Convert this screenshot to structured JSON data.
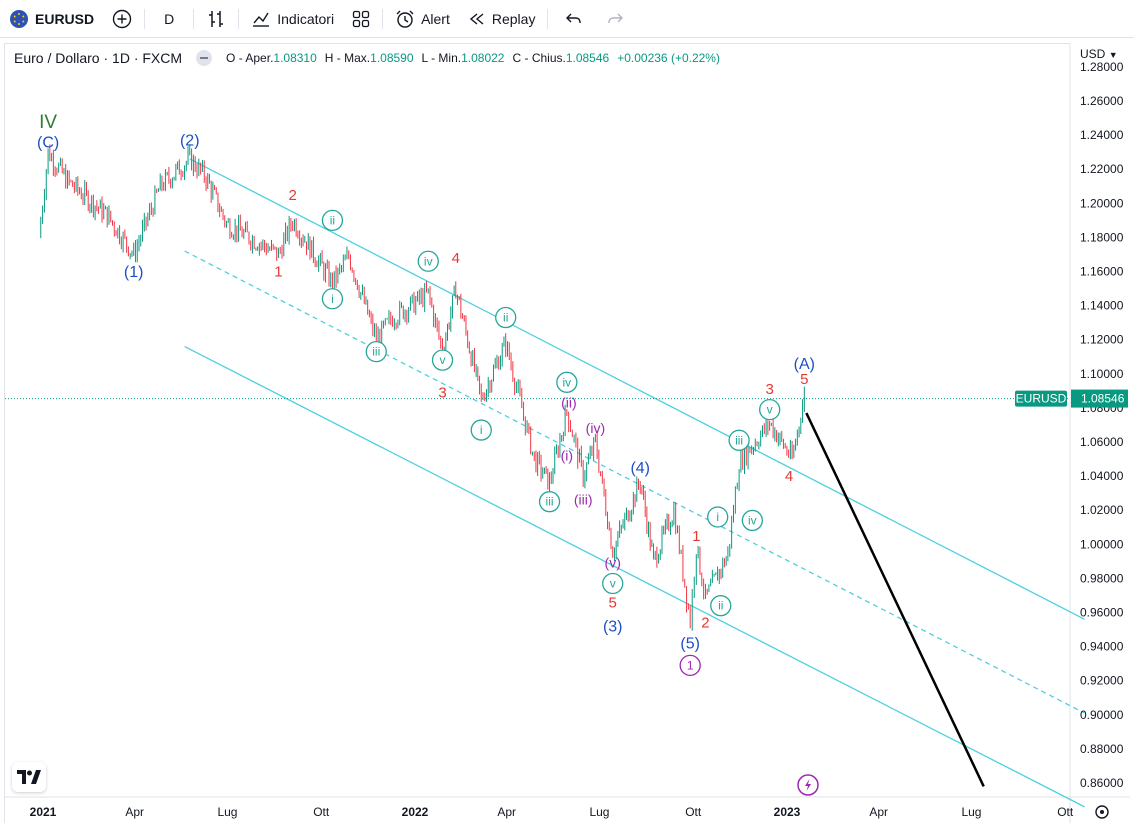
{
  "toolbar": {
    "symbol": "EURUSD",
    "interval": "D",
    "indicators_label": "Indicatori",
    "alert_label": "Alert",
    "replay_label": "Replay"
  },
  "legend": {
    "title": "Euro / Dollaro · 1D · FXCM",
    "open_label": "O - Aper.",
    "open_value": "1.08310",
    "high_label": "H - Max.",
    "high_value": "1.08590",
    "low_label": "L - Min.",
    "low_value": "1.08022",
    "close_label": "C - Chius.",
    "close_value": "1.08546",
    "change_value": "+0.00236 (+0.22%)"
  },
  "price_scale": {
    "currency": "USD"
  },
  "colors": {
    "up": "#089981",
    "down": "#f23645",
    "channel": "#4dd0e1",
    "wave_blue": "#1e4fc4",
    "wave_red": "#e53935",
    "wave_green": "#26a69a",
    "wave_purple": "#9c27b0",
    "wave_darkgreen": "#2e7d32",
    "projection": "#000000"
  },
  "chart_data": {
    "type": "candlestick",
    "symbol": "EURUSD",
    "title": "Euro / Dollaro · 1D · FXCM",
    "ylim": [
      0.85,
      1.28
    ],
    "y_ticks": [
      "0.86000",
      "0.88000",
      "0.90000",
      "0.92000",
      "0.94000",
      "0.96000",
      "0.98000",
      "1.00000",
      "1.02000",
      "1.04000",
      "1.06000",
      "1.08000",
      "1.10000",
      "1.12000",
      "1.14000",
      "1.16000",
      "1.18000",
      "1.20000",
      "1.22000",
      "1.24000",
      "1.26000",
      "1.28000"
    ],
    "x_ticks": [
      "2021",
      "Apr",
      "Lug",
      "Ott",
      "2022",
      "Apr",
      "Lug",
      "Ott",
      "2023",
      "Apr",
      "Lug",
      "Ott"
    ],
    "last_price": {
      "label": "EURUSD",
      "value": "1.08546"
    },
    "price_path": [
      {
        "date": "2020-12-28",
        "close": 1.18
      },
      {
        "date": "2021-01-06",
        "close": 1.23
      },
      {
        "date": "2021-01-25",
        "close": 1.213
      },
      {
        "date": "2021-03-05",
        "close": 1.193
      },
      {
        "date": "2021-03-31",
        "close": 1.17
      },
      {
        "date": "2021-04-26",
        "close": 1.21
      },
      {
        "date": "2021-05-25",
        "close": 1.226
      },
      {
        "date": "2021-06-10",
        "close": 1.215
      },
      {
        "date": "2021-06-30",
        "close": 1.188
      },
      {
        "date": "2021-08-20",
        "close": 1.17
      },
      {
        "date": "2021-09-03",
        "close": 1.19
      },
      {
        "date": "2021-10-12",
        "close": 1.153
      },
      {
        "date": "2021-10-28",
        "close": 1.169
      },
      {
        "date": "2021-11-24",
        "close": 1.12
      },
      {
        "date": "2021-12-10",
        "close": 1.133
      },
      {
        "date": "2022-01-14",
        "close": 1.147
      },
      {
        "date": "2022-01-28",
        "close": 1.113
      },
      {
        "date": "2022-02-10",
        "close": 1.15
      },
      {
        "date": "2022-03-07",
        "close": 1.085
      },
      {
        "date": "2022-03-31",
        "close": 1.118
      },
      {
        "date": "2022-04-28",
        "close": 1.05
      },
      {
        "date": "2022-05-13",
        "close": 1.036
      },
      {
        "date": "2022-05-30",
        "close": 1.078
      },
      {
        "date": "2022-06-15",
        "close": 1.04
      },
      {
        "date": "2022-06-27",
        "close": 1.06
      },
      {
        "date": "2022-07-14",
        "close": 0.996
      },
      {
        "date": "2022-08-10",
        "close": 1.037
      },
      {
        "date": "2022-08-23",
        "close": 0.99
      },
      {
        "date": "2022-09-12",
        "close": 1.02
      },
      {
        "date": "2022-09-28",
        "close": 0.955
      },
      {
        "date": "2022-10-04",
        "close": 0.999
      },
      {
        "date": "2022-10-13",
        "close": 0.968
      },
      {
        "date": "2022-11-04",
        "close": 0.994
      },
      {
        "date": "2022-11-15",
        "close": 1.048
      },
      {
        "date": "2022-12-15",
        "close": 1.071
      },
      {
        "date": "2023-01-06",
        "close": 1.05
      },
      {
        "date": "2023-01-18",
        "close": 1.087
      }
    ],
    "annotations": [
      {
        "text": "IV",
        "color": "darkgreen",
        "date": "2021-01-06",
        "price": 1.248
      },
      {
        "text": "(C)",
        "color": "blue",
        "date": "2021-01-06",
        "price": 1.236
      },
      {
        "text": "(1)",
        "color": "blue",
        "date": "2021-03-31",
        "price": 1.16
      },
      {
        "text": "(2)",
        "color": "blue",
        "date": "2021-05-25",
        "price": 1.237
      },
      {
        "text": "2",
        "color": "red",
        "date": "2021-09-03",
        "price": 1.205
      },
      {
        "text": "1",
        "color": "red",
        "date": "2021-08-20",
        "price": 1.16
      },
      {
        "text": "ii",
        "color": "green",
        "circled": true,
        "date": "2021-10-12",
        "price": 1.19
      },
      {
        "text": "i",
        "color": "green",
        "circled": true,
        "date": "2021-10-12",
        "price": 1.144
      },
      {
        "text": "iii",
        "color": "green",
        "circled": true,
        "date": "2021-11-24",
        "price": 1.113
      },
      {
        "text": "iv",
        "color": "green",
        "circled": true,
        "date": "2022-01-14",
        "price": 1.166
      },
      {
        "text": "4",
        "color": "red",
        "date": "2022-02-10",
        "price": 1.168
      },
      {
        "text": "v",
        "color": "green",
        "circled": true,
        "date": "2022-01-28",
        "price": 1.108
      },
      {
        "text": "ii",
        "color": "green",
        "circled": true,
        "date": "2022-03-31",
        "price": 1.133
      },
      {
        "text": "3",
        "color": "red",
        "date": "2022-01-28",
        "price": 1.089
      },
      {
        "text": "i",
        "color": "green",
        "circled": true,
        "date": "2022-03-07",
        "price": 1.067
      },
      {
        "text": "iv",
        "color": "green",
        "circled": true,
        "date": "2022-05-30",
        "price": 1.095
      },
      {
        "text": "(ii)",
        "color": "purple",
        "date": "2022-06-01",
        "price": 1.083
      },
      {
        "text": "(iv)",
        "color": "purple",
        "date": "2022-06-27",
        "price": 1.068
      },
      {
        "text": "(i)",
        "color": "purple",
        "date": "2022-05-30",
        "price": 1.052
      },
      {
        "text": "(iii)",
        "color": "purple",
        "date": "2022-06-15",
        "price": 1.026
      },
      {
        "text": "iii",
        "color": "green",
        "circled": true,
        "date": "2022-05-13",
        "price": 1.025
      },
      {
        "text": "(4)",
        "color": "blue",
        "date": "2022-08-10",
        "price": 1.045
      },
      {
        "text": "(v)",
        "color": "purple",
        "date": "2022-07-14",
        "price": 0.989
      },
      {
        "text": "v",
        "color": "green",
        "circled": true,
        "date": "2022-07-14",
        "price": 0.977
      },
      {
        "text": "5",
        "color": "red",
        "date": "2022-07-14",
        "price": 0.966
      },
      {
        "text": "(3)",
        "color": "blue",
        "date": "2022-07-14",
        "price": 0.952
      },
      {
        "text": "1",
        "color": "red",
        "date": "2022-10-04",
        "price": 1.005
      },
      {
        "text": "(5)",
        "color": "blue",
        "date": "2022-09-28",
        "price": 0.942
      },
      {
        "text": "1",
        "color": "purple",
        "circled": true,
        "date": "2022-09-28",
        "price": 0.929
      },
      {
        "text": "2",
        "color": "red",
        "date": "2022-10-13",
        "price": 0.954
      },
      {
        "text": "i",
        "color": "green",
        "circled": true,
        "date": "2022-10-25",
        "price": 1.016
      },
      {
        "text": "ii",
        "color": "green",
        "circled": true,
        "date": "2022-10-28",
        "price": 0.964
      },
      {
        "text": "iii",
        "color": "green",
        "circled": true,
        "date": "2022-11-15",
        "price": 1.061
      },
      {
        "text": "iv",
        "color": "green",
        "circled": true,
        "date": "2022-11-28",
        "price": 1.014
      },
      {
        "text": "v",
        "color": "green",
        "circled": true,
        "date": "2022-12-15",
        "price": 1.079
      },
      {
        "text": "3",
        "color": "red",
        "date": "2022-12-15",
        "price": 1.091
      },
      {
        "text": "4",
        "color": "red",
        "date": "2023-01-03",
        "price": 1.04
      },
      {
        "text": "5",
        "color": "red",
        "date": "2023-01-18",
        "price": 1.097
      },
      {
        "text": "(A)",
        "color": "blue",
        "date": "2023-01-18",
        "price": 1.106
      }
    ],
    "channel_lines": [
      {
        "style": "solid",
        "from": {
          "date": "2021-05-25",
          "price": 1.226
        },
        "to": {
          "date": "2023-10-20",
          "price": 0.956
        }
      },
      {
        "style": "dashed",
        "from": {
          "date": "2021-05-20",
          "price": 1.172
        },
        "to": {
          "date": "2023-10-20",
          "price": 0.901
        }
      },
      {
        "style": "solid",
        "from": {
          "date": "2021-05-20",
          "price": 1.116
        },
        "to": {
          "date": "2023-10-20",
          "price": 0.846
        }
      }
    ],
    "projection": {
      "from": {
        "date": "2023-01-20",
        "price": 1.077
      },
      "to": {
        "date": "2023-07-13",
        "price": 0.858
      }
    }
  }
}
